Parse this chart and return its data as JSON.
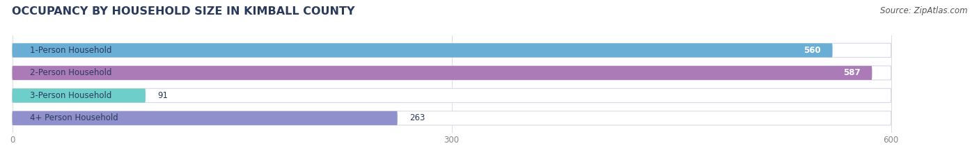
{
  "title": "OCCUPANCY BY HOUSEHOLD SIZE IN KIMBALL COUNTY",
  "source": "Source: ZipAtlas.com",
  "categories": [
    "1-Person Household",
    "2-Person Household",
    "3-Person Household",
    "4+ Person Household"
  ],
  "values": [
    560,
    587,
    91,
    263
  ],
  "bar_colors": [
    "#6aaed6",
    "#ab7bb8",
    "#6ecfca",
    "#9090cc"
  ],
  "bar_background": "#ebebf2",
  "bar_border": "#d8d8e8",
  "xlim": [
    -5,
    650
  ],
  "data_max": 600,
  "xticks": [
    0,
    300,
    600
  ],
  "title_fontsize": 11.5,
  "label_fontsize": 8.5,
  "value_fontsize": 8.5,
  "source_fontsize": 8.5,
  "bar_height": 0.62,
  "figsize": [
    14.06,
    2.33
  ],
  "dpi": 100,
  "title_color": "#2a3a5c",
  "label_color": "#2a3a5c",
  "tick_color": "#888888",
  "source_color": "#555555"
}
